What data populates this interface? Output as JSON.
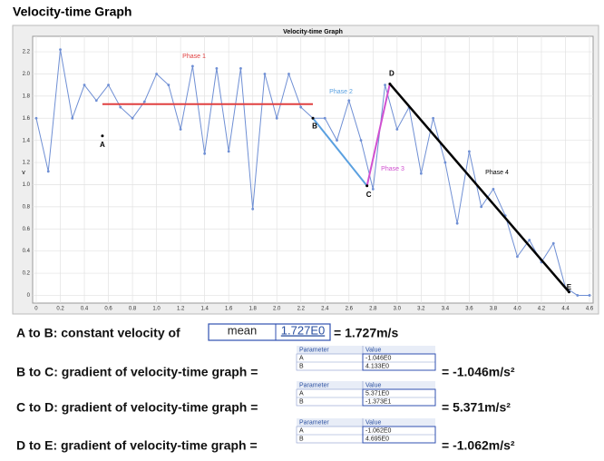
{
  "title": "Velocity-time Graph",
  "chart_data": {
    "type": "line",
    "title": "Velocity-time Graph",
    "y_label": "v",
    "x": [
      0,
      0.1,
      0.2,
      0.3,
      0.4,
      0.5,
      0.6,
      0.7,
      0.8,
      0.9,
      1.0,
      1.1,
      1.2,
      1.3,
      1.4,
      1.5,
      1.6,
      1.7,
      1.8,
      1.9,
      2.0,
      2.1,
      2.2,
      2.3,
      2.4,
      2.5,
      2.6,
      2.7,
      2.8,
      2.9,
      3.0,
      3.1,
      3.2,
      3.3,
      3.4,
      3.5,
      3.6,
      3.7,
      3.8,
      3.9,
      4.0,
      4.1,
      4.2,
      4.3,
      4.4,
      4.5,
      4.6
    ],
    "series": [
      {
        "color": "#6f8fd4",
        "values": [
          1.6,
          1.12,
          2.22,
          1.6,
          1.9,
          1.76,
          1.9,
          1.7,
          1.6,
          1.75,
          2.0,
          1.9,
          1.5,
          2.07,
          1.28,
          2.05,
          1.3,
          2.05,
          0.78,
          2.0,
          1.6,
          2.0,
          1.7,
          1.6,
          1.6,
          1.4,
          1.76,
          1.4,
          0.96,
          1.9,
          1.5,
          1.7,
          1.1,
          1.6,
          1.2,
          0.65,
          1.3,
          0.8,
          0.96,
          0.72,
          0.35,
          0.5,
          0.3,
          0.47,
          0.07,
          0.0,
          0.0
        ]
      }
    ],
    "phases": [
      {
        "label": "Phase 1",
        "color": "#e04040",
        "x": [
          0.55,
          2.3
        ],
        "y": [
          1.727,
          1.727
        ]
      },
      {
        "label": "Phase 2",
        "color": "#5aa0e0",
        "x": [
          2.3,
          2.75
        ],
        "y": [
          1.6,
          0.99
        ]
      },
      {
        "label": "Phase 3",
        "color": "#d050d0",
        "x": [
          2.75,
          2.94
        ],
        "y": [
          0.99,
          1.91
        ]
      },
      {
        "label": "Phase 4",
        "color": "#000000",
        "x": [
          2.94,
          4.43
        ],
        "y": [
          1.91,
          0.03
        ]
      }
    ],
    "points": [
      {
        "label": "A",
        "x": 0.55,
        "y": 1.44
      },
      {
        "label": "B",
        "x": 2.3,
        "y": 1.6
      },
      {
        "label": "C",
        "x": 2.75,
        "y": 0.99
      },
      {
        "label": "D",
        "x": 2.94,
        "y": 1.91
      },
      {
        "label": "E",
        "x": 4.43,
        "y": 0.03
      }
    ],
    "xlim": [
      -0.03,
      4.63
    ],
    "xticks": [
      0,
      0.2,
      0.4,
      0.6,
      0.8,
      {
        "value": 1,
        "label": "1.0"
      },
      1.2,
      1.4,
      1.6,
      1.8,
      {
        "value": 2,
        "label": "2.0"
      },
      2.2,
      2.4,
      2.6,
      2.8,
      {
        "value": 3,
        "label": "3.0"
      },
      3.2,
      3.4,
      3.6,
      3.8,
      {
        "value": 4,
        "label": "4.0"
      },
      4.2,
      4.4,
      4.6
    ],
    "ylim": [
      -0.07,
      2.34
    ],
    "yticks": [
      0,
      0.2,
      0.4,
      0.6,
      0.8,
      {
        "value": 1,
        "label": "1.0"
      },
      1.2,
      1.4,
      1.6,
      1.8,
      {
        "value": 2,
        "label": "2.0"
      },
      2.2
    ],
    "grid": true
  },
  "rows": [
    {
      "label": "A to B: constant velocity of",
      "field": "mean",
      "value": "1.727E0",
      "result": "= 1.727m/s"
    },
    {
      "label": "B to C: gradient of velocity-time graph =",
      "table": {
        "header": [
          "Parameter",
          "Value"
        ],
        "rows": [
          [
            "A",
            "-1.046E0"
          ],
          [
            "B",
            "4.133E0"
          ]
        ]
      },
      "result": "= -1.046m/s²"
    },
    {
      "label": "C to D: gradient of velocity-time graph =",
      "table": {
        "header": [
          "Parameter",
          "Value"
        ],
        "rows": [
          [
            "A",
            "5.371E0"
          ],
          [
            "B",
            "-1.373E1"
          ]
        ]
      },
      "result": "= 5.371m/s²"
    },
    {
      "label": "D to E: gradient of velocity-time graph =",
      "table": {
        "header": [
          "Parameter",
          "Value"
        ],
        "rows": [
          [
            "A",
            "-1.062E0"
          ],
          [
            "B",
            "4.695E0"
          ]
        ]
      },
      "result": "= -1.062m/s²"
    }
  ]
}
